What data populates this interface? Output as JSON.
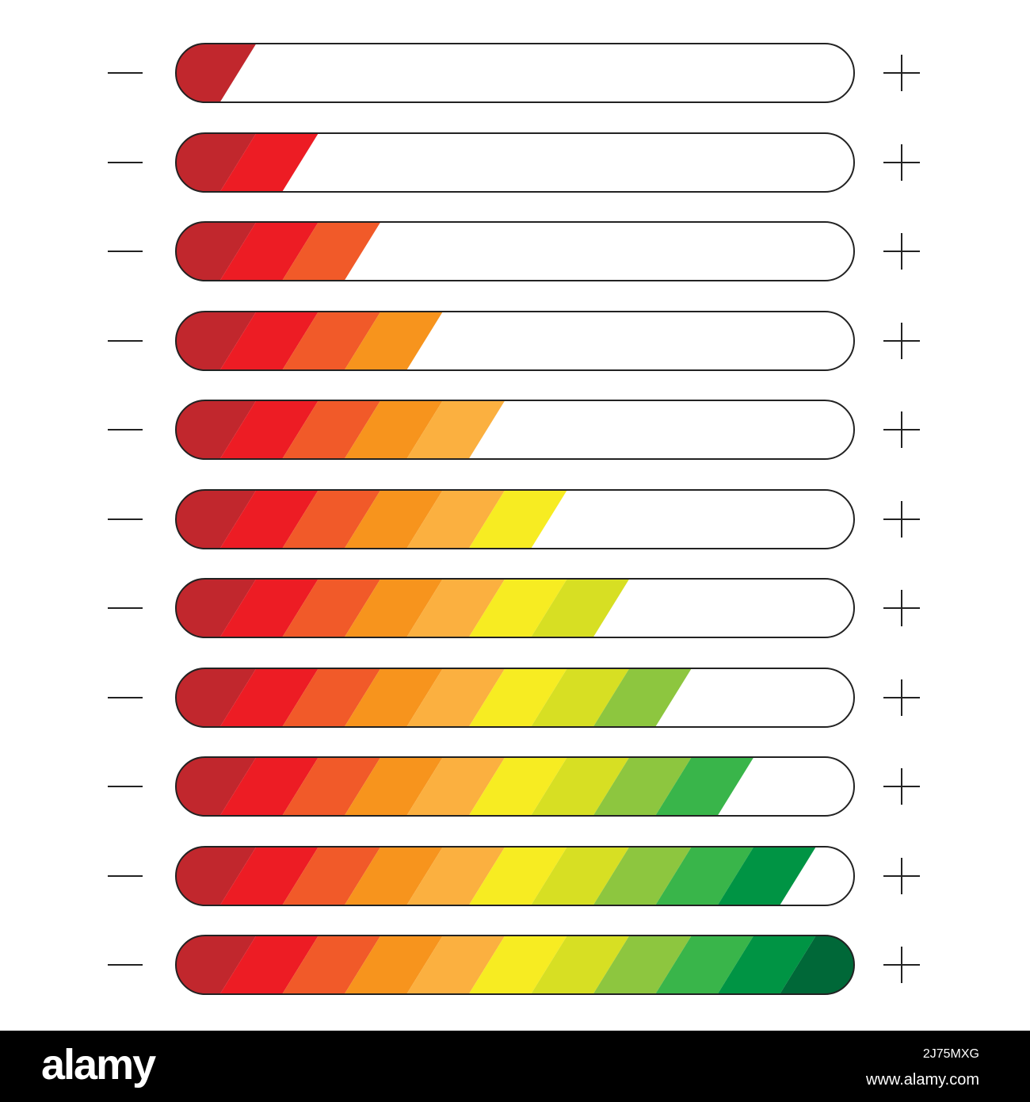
{
  "meters": {
    "segment_colors": [
      "#c1272d",
      "#ed1c24",
      "#f15a29",
      "#f7941d",
      "#fbb040",
      "#f7ec22",
      "#d7df23",
      "#8dc63f",
      "#39b54a",
      "#009444",
      "#006838"
    ],
    "levels": [
      1,
      2,
      3,
      4,
      5,
      6,
      7,
      8,
      9,
      10,
      11
    ],
    "segments_total": 11,
    "outline_color": "#222222",
    "decrease_icon": "minus-icon",
    "increase_icon": "plus-icon"
  },
  "footer": {
    "logo": "alamy",
    "image_id": "2J75MXG",
    "url": "www.alamy.com",
    "background": "#000000"
  }
}
